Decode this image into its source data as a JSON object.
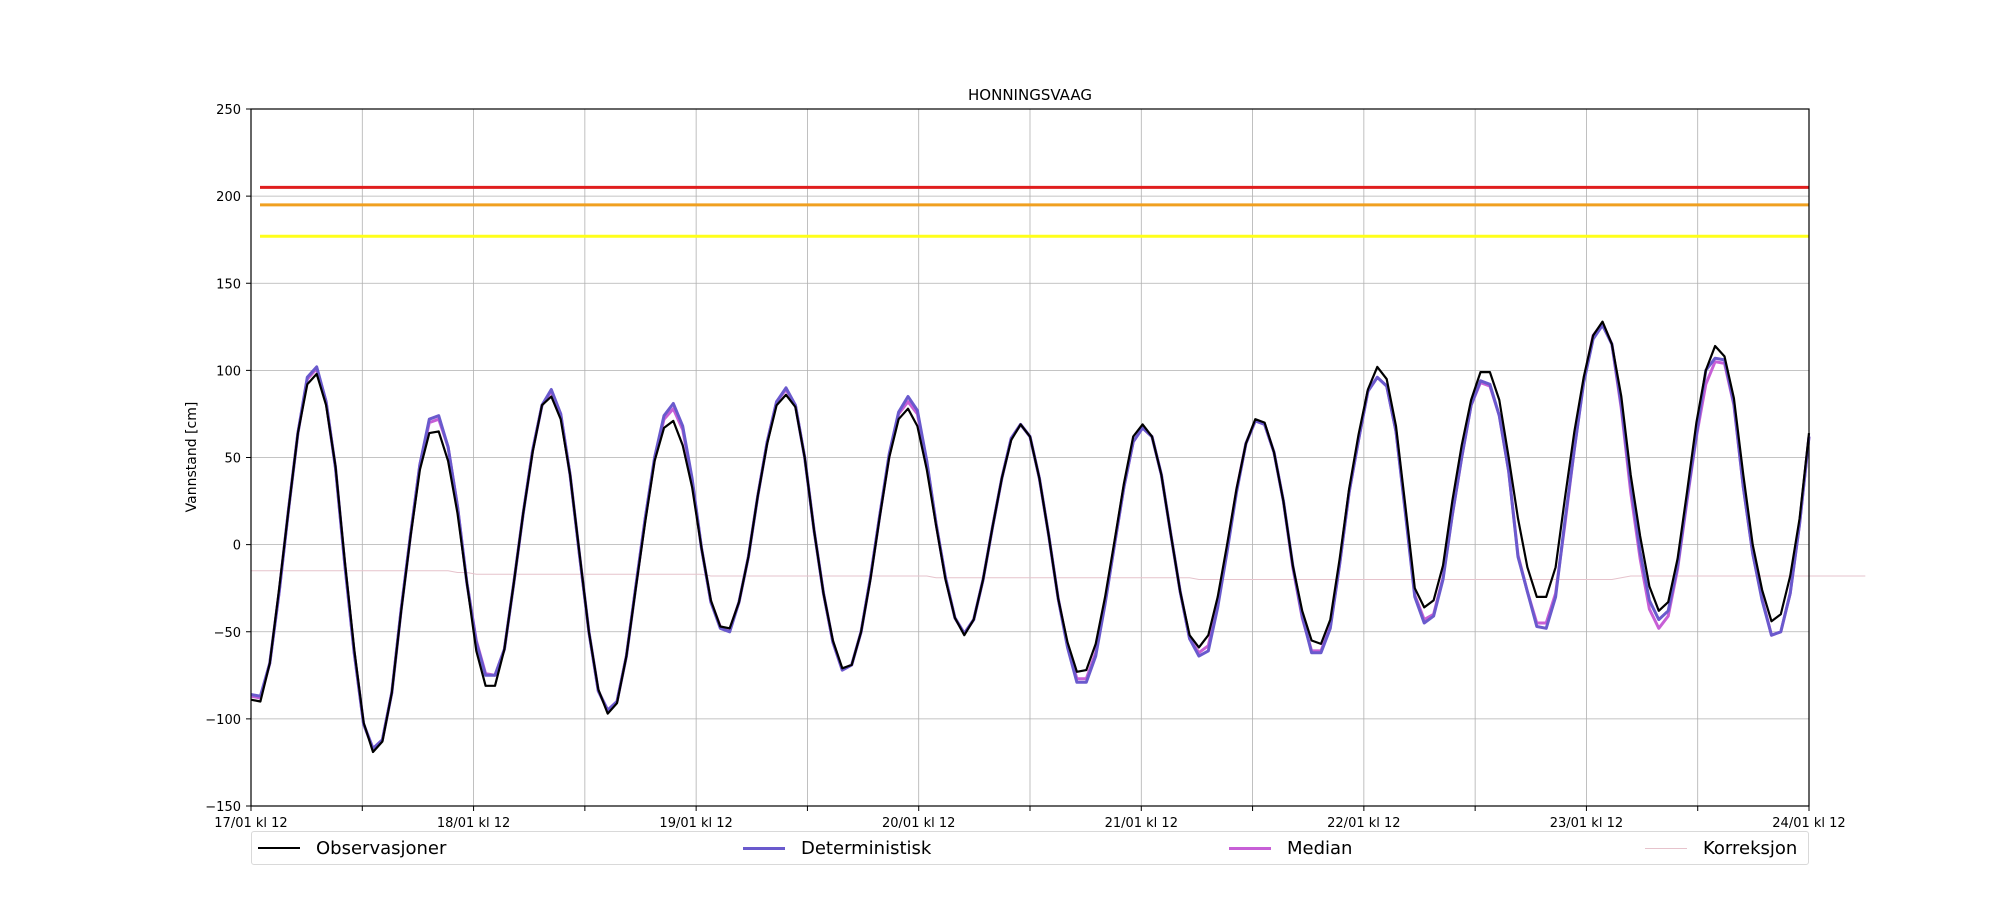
{
  "chart_data": {
    "type": "line",
    "title": "HONNINGSVAAG",
    "xlabel": "",
    "ylabel": "Vannstand [cm]",
    "ylim": [
      -150,
      250
    ],
    "yticks": [
      -150,
      -100,
      -50,
      0,
      50,
      100,
      150,
      200,
      250
    ],
    "ytick_labels": [
      "−150",
      "−100",
      "−50",
      "0",
      "50",
      "100",
      "150",
      "200",
      "250"
    ],
    "xtick_labels": [
      "17/01 kl 12",
      "18/01 kl 12",
      "19/01 kl 12",
      "20/01 kl 12",
      "21/01 kl 12",
      "22/01 kl 12",
      "23/01 kl 12",
      "24/01 kl 12"
    ],
    "x_start_label": "17/01 kl 12",
    "x_step_hours": 1,
    "grid": true,
    "legend_position": "bottom",
    "thresholds": [
      {
        "value": 205,
        "color": "#e01e1e"
      },
      {
        "value": 195,
        "color": "#f0a020"
      },
      {
        "value": 177,
        "color": "#ffff1a"
      }
    ],
    "series": [
      {
        "name": "Observasjoner",
        "color": "#000000",
        "values": [
          -89,
          -90,
          -68,
          -25,
          20,
          64,
          92,
          98,
          80,
          45,
          -10,
          -60,
          -102,
          -119,
          -113,
          -85,
          -38,
          5,
          43,
          64,
          65,
          48,
          18,
          -22,
          -61,
          -81,
          -81,
          -60,
          -22,
          18,
          53,
          80,
          85,
          72,
          40,
          -5,
          -50,
          -83,
          -97,
          -91,
          -64,
          -25,
          13,
          48,
          67,
          71,
          57,
          33,
          -2,
          -32,
          -47,
          -48,
          -33,
          -7,
          28,
          58,
          80,
          86,
          79,
          50,
          8,
          -28,
          -55,
          -71,
          -69,
          -50,
          -20,
          16,
          50,
          72,
          78,
          68,
          43,
          11,
          -20,
          -42,
          -52,
          -43,
          -20,
          10,
          38,
          60,
          69,
          62,
          38,
          5,
          -31,
          -56,
          -73,
          -72,
          -57,
          -30,
          2,
          35,
          62,
          69,
          62,
          40,
          6,
          -27,
          -52,
          -59,
          -52,
          -30,
          0,
          32,
          58,
          72,
          70,
          53,
          25,
          -12,
          -38,
          -55,
          -57,
          -43,
          -8,
          32,
          63,
          89,
          102,
          95,
          68,
          22,
          -25,
          -36,
          -32,
          -12,
          25,
          57,
          83,
          99,
          99,
          83,
          50,
          15,
          -13,
          -30,
          -30,
          -13,
          27,
          65,
          96,
          120,
          128,
          115,
          85,
          40,
          5,
          -24,
          -38,
          -33,
          -8,
          30,
          70,
          100,
          114,
          108,
          84,
          40,
          0,
          -26,
          -44,
          -40,
          -18,
          15,
          64
        ]
      },
      {
        "name": "Deterministisk",
        "color": "#6a5acd",
        "values": [
          -86,
          -87,
          -68,
          -27,
          20,
          64,
          96,
          102,
          82,
          44,
          -12,
          -62,
          -103,
          -117,
          -112,
          -85,
          -37,
          6,
          46,
          72,
          74,
          56,
          22,
          -22,
          -56,
          -75,
          -75,
          -60,
          -22,
          18,
          54,
          80,
          89,
          75,
          40,
          -6,
          -50,
          -84,
          -95,
          -90,
          -64,
          -24,
          15,
          50,
          74,
          81,
          68,
          38,
          -2,
          -33,
          -48,
          -50,
          -33,
          -7,
          28,
          59,
          82,
          90,
          80,
          50,
          8,
          -28,
          -56,
          -72,
          -69,
          -50,
          -19,
          17,
          52,
          76,
          85,
          77,
          48,
          12,
          -19,
          -42,
          -51,
          -43,
          -20,
          10,
          38,
          61,
          69,
          62,
          38,
          5,
          -31,
          -59,
          -79,
          -79,
          -64,
          -34,
          0,
          33,
          59,
          67,
          62,
          40,
          6,
          -27,
          -54,
          -64,
          -61,
          -36,
          -4,
          30,
          58,
          71,
          69,
          53,
          25,
          -12,
          -41,
          -62,
          -62,
          -48,
          -11,
          30,
          60,
          88,
          96,
          91,
          65,
          18,
          -30,
          -45,
          -41,
          -20,
          17,
          50,
          80,
          94,
          92,
          74,
          42,
          -7,
          -27,
          -47,
          -48,
          -30,
          14,
          55,
          93,
          118,
          126,
          115,
          80,
          35,
          -4,
          -32,
          -43,
          -38,
          -12,
          27,
          63,
          100,
          107,
          106,
          81,
          33,
          -5,
          -32,
          -52,
          -50,
          -28,
          12,
          62
        ]
      },
      {
        "name": "Median",
        "color": "#c75fd6",
        "values": [
          -87,
          -88,
          -68,
          -27,
          20,
          64,
          95,
          101,
          82,
          44,
          -12,
          -62,
          -103,
          -117,
          -112,
          -85,
          -37,
          6,
          46,
          70,
          72,
          56,
          22,
          -22,
          -55,
          -74,
          -75,
          -60,
          -22,
          18,
          54,
          80,
          88,
          75,
          40,
          -6,
          -50,
          -84,
          -95,
          -90,
          -64,
          -24,
          15,
          49,
          72,
          78,
          66,
          37,
          -2,
          -33,
          -47,
          -49,
          -33,
          -7,
          28,
          59,
          82,
          89,
          80,
          50,
          8,
          -28,
          -56,
          -72,
          -69,
          -50,
          -19,
          17,
          51,
          75,
          82,
          75,
          47,
          12,
          -19,
          -42,
          -51,
          -43,
          -20,
          10,
          38,
          61,
          69,
          62,
          38,
          5,
          -31,
          -58,
          -77,
          -77,
          -62,
          -33,
          0,
          33,
          59,
          67,
          62,
          40,
          6,
          -27,
          -54,
          -62,
          -58,
          -34,
          -2,
          31,
          58,
          71,
          69,
          53,
          25,
          -13,
          -42,
          -61,
          -61,
          -47,
          -11,
          30,
          60,
          88,
          96,
          91,
          65,
          19,
          -29,
          -43,
          -40,
          -19,
          17,
          50,
          80,
          93,
          91,
          74,
          42,
          -6,
          -27,
          -45,
          -45,
          -28,
          12,
          55,
          94,
          120,
          127,
          115,
          78,
          30,
          -8,
          -37,
          -48,
          -41,
          -14,
          25,
          62,
          92,
          105,
          104,
          80,
          33,
          -5,
          -31,
          -52,
          -50,
          -28,
          12,
          62
        ]
      },
      {
        "name": "Korreksjon",
        "color": "#e6c3cc",
        "values": [
          -15,
          -15,
          -15,
          -15,
          -15,
          -15,
          -15,
          -15,
          -15,
          -15,
          -15,
          -15,
          -15,
          -15,
          -15,
          -15,
          -15,
          -15,
          -15,
          -15,
          -15,
          -15,
          -16,
          -16,
          -17,
          -17,
          -17,
          -17,
          -17,
          -17,
          -17,
          -17,
          -17,
          -17,
          -17,
          -17,
          -17,
          -17,
          -17,
          -17,
          -17,
          -17,
          -17,
          -17,
          -17,
          -17,
          -17,
          -17,
          -17,
          -18,
          -18,
          -18,
          -18,
          -18,
          -18,
          -18,
          -18,
          -18,
          -18,
          -18,
          -18,
          -18,
          -18,
          -18,
          -18,
          -18,
          -18,
          -18,
          -18,
          -18,
          -18,
          -18,
          -18,
          -19,
          -19,
          -19,
          -19,
          -19,
          -19,
          -19,
          -19,
          -19,
          -19,
          -19,
          -19,
          -19,
          -19,
          -19,
          -19,
          -19,
          -19,
          -19,
          -19,
          -19,
          -19,
          -19,
          -19,
          -19,
          -19,
          -19,
          -19,
          -20,
          -20,
          -20,
          -20,
          -20,
          -20,
          -20,
          -20,
          -20,
          -20,
          -20,
          -20,
          -20,
          -20,
          -20,
          -20,
          -20,
          -20,
          -20,
          -20,
          -20,
          -20,
          -20,
          -20,
          -20,
          -20,
          -20,
          -20,
          -20,
          -20,
          -20,
          -20,
          -20,
          -20,
          -20,
          -20,
          -20,
          -20,
          -20,
          -20,
          -20,
          -20,
          -20,
          -20,
          -20,
          -19,
          -18,
          -18,
          -18,
          -18,
          -18,
          -18,
          -18,
          -18,
          -18,
          -18,
          -18,
          -18,
          -18,
          -18,
          -18,
          -18,
          -18,
          -18,
          -18,
          -18,
          -18,
          -18,
          -18,
          -18,
          -18,
          -18
        ]
      }
    ]
  }
}
